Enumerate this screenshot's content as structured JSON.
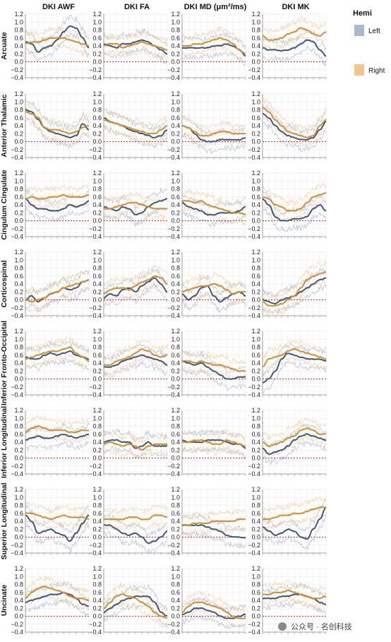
{
  "chart_data": {
    "type": "line",
    "columns": [
      "DKI AWF",
      "DKI FA",
      "DKI MD (μm²/ms)",
      "DKI MK"
    ],
    "rows": [
      "Arcuate",
      "Anterior Thalamic",
      "Cingulum Cingulate",
      "Corticospinal",
      "Inferior Fronto-Occipital",
      "Inferior Longitudinal",
      "Superior Longitudinal",
      "Uncinate"
    ],
    "y_ticks": [
      "1.2",
      "1.0",
      "0.8",
      "0.6",
      "0.4",
      "0.2",
      "0.0",
      "−0.2",
      "−0.4"
    ],
    "ylim": [
      -0.4,
      1.2
    ],
    "xlim": [
      0,
      100
    ],
    "reference_line": 0,
    "legend": {
      "title": "Hemi",
      "placement": "top-right",
      "entries": [
        {
          "label": "Left",
          "color": "#A9B9D2"
        },
        {
          "label": "Right",
          "color": "#F2C58F"
        }
      ]
    },
    "colors": {
      "left_line": "#3D5A80",
      "right_line": "#E08A1E",
      "left_band": "#9FB0C8",
      "right_band": "#F2C58F",
      "grid": "#e6e6e6",
      "reference": "#d62728"
    },
    "series": {
      "Arcuate": {
        "DKI AWF": {
          "Left": [
            0.5,
            0.45,
            0.25,
            0.35,
            0.4,
            0.55,
            0.75,
            0.9,
            0.85,
            0.6,
            0.35
          ],
          "Right": [
            0.45,
            0.5,
            0.5,
            0.55,
            0.6,
            0.6,
            0.6,
            0.55,
            0.5,
            0.45,
            0.4
          ]
        },
        "DKI FA": {
          "Left": [
            0.45,
            0.4,
            0.35,
            0.45,
            0.45,
            0.5,
            0.55,
            0.5,
            0.4,
            0.3,
            0.2
          ],
          "Right": [
            0.4,
            0.45,
            0.45,
            0.35,
            0.4,
            0.45,
            0.5,
            0.45,
            0.4,
            0.35,
            0.3
          ]
        },
        "DKI MD (μm²/ms)": {
          "Left": [
            0.35,
            0.35,
            0.35,
            0.35,
            0.35,
            0.4,
            0.4,
            0.45,
            0.4,
            0.3,
            0.15
          ],
          "Right": [
            0.4,
            0.4,
            0.45,
            0.45,
            0.5,
            0.55,
            0.6,
            0.55,
            0.45,
            0.3,
            0.2
          ]
        },
        "DKI MK": {
          "Left": [
            0.35,
            0.3,
            0.3,
            0.28,
            0.3,
            0.35,
            0.45,
            0.55,
            0.5,
            0.3,
            0.15
          ],
          "Right": [
            0.65,
            0.55,
            0.55,
            0.6,
            0.7,
            0.75,
            0.85,
            0.8,
            0.7,
            0.65,
            0.75
          ]
        }
      },
      "Anterior Thalamic": {
        "DKI AWF": {
          "Left": [
            0.8,
            0.75,
            0.55,
            0.35,
            0.25,
            0.2,
            0.15,
            0.1,
            0.15,
            0.45,
            0.3
          ],
          "Right": [
            0.75,
            0.7,
            0.6,
            0.35,
            0.3,
            0.3,
            0.25,
            0.2,
            0.25,
            0.35,
            0.4
          ]
        },
        "DKI FA": {
          "Left": [
            0.6,
            0.5,
            0.45,
            0.4,
            0.3,
            0.25,
            0.2,
            0.15,
            0.1,
            0.15,
            0.3
          ],
          "Right": [
            0.55,
            0.5,
            0.45,
            0.4,
            0.35,
            0.3,
            0.25,
            0.2,
            0.2,
            0.3,
            0.4
          ]
        },
        "DKI MD (μm²/ms)": {
          "Left": [
            0.4,
            0.35,
            0.2,
            0.05,
            0.0,
            0.0,
            0.05,
            0.05,
            0.05,
            0.05,
            0.1
          ],
          "Right": [
            0.4,
            0.35,
            0.25,
            0.15,
            0.15,
            0.2,
            0.25,
            0.25,
            0.2,
            0.2,
            0.2
          ]
        },
        "DKI MK": {
          "Left": [
            0.7,
            0.6,
            0.4,
            0.25,
            0.15,
            0.1,
            0.05,
            0.05,
            0.1,
            0.3,
            0.5
          ],
          "Right": [
            0.85,
            0.75,
            0.55,
            0.4,
            0.25,
            0.2,
            0.15,
            0.1,
            0.15,
            0.4,
            0.55
          ]
        }
      },
      "Cingulum Cingulate": {
        "DKI AWF": {
          "Left": [
            0.55,
            0.4,
            0.3,
            0.3,
            0.25,
            0.25,
            0.3,
            0.4,
            0.35,
            0.4,
            0.5
          ],
          "Right": [
            0.55,
            0.6,
            0.55,
            0.55,
            0.6,
            0.6,
            0.65,
            0.6,
            0.6,
            0.6,
            0.65
          ]
        },
        "DKI FA": {
          "Left": [
            0.35,
            0.3,
            0.25,
            0.35,
            0.3,
            0.15,
            0.2,
            0.35,
            0.45,
            0.5,
            0.55
          ],
          "Right": [
            0.3,
            0.3,
            0.35,
            0.4,
            0.45,
            0.45,
            0.4,
            0.35,
            0.3,
            0.3,
            0.3
          ]
        },
        "DKI MD (μm²/ms)": {
          "Left": [
            0.45,
            0.35,
            0.3,
            0.25,
            0.15,
            0.15,
            0.2,
            0.2,
            0.2,
            0.25,
            0.35
          ],
          "Right": [
            0.5,
            0.5,
            0.45,
            0.5,
            0.4,
            0.35,
            0.3,
            0.25,
            0.2,
            0.2,
            0.15
          ]
        },
        "DKI MK": {
          "Left": [
            0.55,
            0.4,
            0.1,
            0.0,
            0.0,
            0.05,
            0.05,
            0.1,
            0.3,
            0.4,
            0.25
          ],
          "Right": [
            0.6,
            0.55,
            0.4,
            0.35,
            0.25,
            0.25,
            0.3,
            0.45,
            0.6,
            0.65,
            0.7
          ]
        }
      },
      "Corticospinal": {
        "DKI AWF": {
          "Left": [
            0.0,
            0.1,
            -0.05,
            0.05,
            0.15,
            0.2,
            0.3,
            0.25,
            0.3,
            0.45,
            0.5
          ],
          "Right": [
            0.0,
            -0.05,
            0.0,
            0.05,
            0.15,
            0.2,
            0.3,
            0.35,
            0.4,
            0.45,
            0.5
          ]
        },
        "DKI FA": {
          "Left": [
            0.05,
            0.15,
            0.1,
            0.25,
            0.3,
            0.2,
            0.35,
            0.45,
            0.55,
            0.4,
            0.2
          ],
          "Right": [
            0.15,
            0.25,
            0.3,
            0.3,
            0.25,
            0.35,
            0.45,
            0.5,
            0.6,
            0.55,
            0.4
          ]
        },
        "DKI MD (μm²/ms)": {
          "Left": [
            0.15,
            0.0,
            0.1,
            0.3,
            0.35,
            0.1,
            -0.05,
            0.05,
            0.15,
            0.2,
            0.1
          ],
          "Right": [
            0.2,
            0.25,
            0.3,
            0.35,
            0.35,
            0.4,
            0.35,
            0.25,
            0.15,
            0.2,
            0.2
          ]
        },
        "DKI MK": {
          "Left": [
            0.0,
            -0.05,
            -0.1,
            0.0,
            0.05,
            0.1,
            0.2,
            0.3,
            0.4,
            0.5,
            0.55
          ],
          "Right": [
            -0.05,
            -0.15,
            -0.15,
            -0.1,
            0.0,
            0.1,
            0.3,
            0.5,
            0.6,
            0.65,
            0.7
          ]
        }
      },
      "Inferior Fronto-Occipital": {
        "DKI AWF": {
          "Left": [
            0.55,
            0.5,
            0.5,
            0.6,
            0.65,
            0.6,
            0.65,
            0.7,
            0.6,
            0.55,
            0.5
          ],
          "Right": [
            0.5,
            0.55,
            0.6,
            0.65,
            0.7,
            0.7,
            0.75,
            0.8,
            0.65,
            0.55,
            0.45
          ]
        },
        "DKI FA": {
          "Left": [
            0.3,
            0.3,
            0.35,
            0.45,
            0.5,
            0.55,
            0.6,
            0.55,
            0.5,
            0.45,
            0.35
          ],
          "Right": [
            0.35,
            0.35,
            0.45,
            0.5,
            0.55,
            0.65,
            0.75,
            0.7,
            0.6,
            0.55,
            0.6
          ]
        },
        "DKI MD (μm²/ms)": {
          "Left": [
            0.45,
            0.4,
            0.35,
            0.4,
            0.3,
            0.2,
            0.1,
            0.0,
            0.0,
            0.05,
            0.05
          ],
          "Right": [
            0.45,
            0.45,
            0.4,
            0.45,
            0.4,
            0.35,
            0.35,
            0.3,
            0.25,
            0.2,
            0.2
          ]
        },
        "DKI MK": {
          "Left": [
            -0.1,
            0.0,
            0.2,
            0.5,
            0.65,
            0.6,
            0.55,
            0.5,
            0.5,
            0.5,
            0.45
          ],
          "Right": [
            0.3,
            0.5,
            0.55,
            0.6,
            0.7,
            0.75,
            0.7,
            0.65,
            0.6,
            0.55,
            0.5
          ]
        }
      },
      "Inferior Longitudinal": {
        "DKI AWF": {
          "Left": [
            0.45,
            0.5,
            0.55,
            0.5,
            0.5,
            0.55,
            0.6,
            0.55,
            0.5,
            0.55,
            0.6
          ],
          "Right": [
            0.65,
            0.75,
            0.8,
            0.75,
            0.7,
            0.7,
            0.7,
            0.65,
            0.65,
            0.7,
            0.7
          ]
        },
        "DKI FA": {
          "Left": [
            0.4,
            0.45,
            0.45,
            0.4,
            0.4,
            0.25,
            0.3,
            0.4,
            0.3,
            0.3,
            0.3
          ],
          "Right": [
            0.35,
            0.4,
            0.35,
            0.3,
            0.35,
            0.3,
            0.2,
            0.3,
            0.35,
            0.35,
            0.35
          ]
        },
        "DKI MD (μm²/ms)": {
          "Left": [
            0.45,
            0.4,
            0.4,
            0.4,
            0.45,
            0.45,
            0.45,
            0.4,
            0.35,
            0.35,
            0.25
          ],
          "Right": [
            0.4,
            0.4,
            0.45,
            0.45,
            0.4,
            0.35,
            0.35,
            0.45,
            0.4,
            0.35,
            0.3
          ]
        },
        "DKI MK": {
          "Left": [
            0.25,
            0.1,
            0.15,
            0.2,
            0.3,
            0.45,
            0.55,
            0.6,
            0.55,
            0.5,
            0.45
          ],
          "Right": [
            0.4,
            0.3,
            0.35,
            0.4,
            0.5,
            0.55,
            0.7,
            0.75,
            0.7,
            0.6,
            0.6
          ]
        }
      },
      "Superior Longitudinal": {
        "DKI AWF": {
          "Left": [
            0.55,
            0.4,
            0.1,
            0.15,
            0.2,
            0.1,
            0.05,
            -0.1,
            0.1,
            0.35,
            0.55
          ],
          "Right": [
            0.6,
            0.6,
            0.55,
            0.5,
            0.45,
            0.5,
            0.55,
            0.5,
            0.5,
            0.5,
            0.45
          ]
        },
        "DKI FA": {
          "Left": [
            0.3,
            0.3,
            0.2,
            0.1,
            0.05,
            0.1,
            0.0,
            -0.15,
            -0.1,
            0.0,
            0.15
          ],
          "Right": [
            0.45,
            0.45,
            0.45,
            0.45,
            0.5,
            0.5,
            0.45,
            0.45,
            0.55,
            0.55,
            0.5
          ]
        },
        "DKI MD (μm²/ms)": {
          "Left": [
            0.3,
            0.3,
            0.3,
            0.3,
            0.25,
            0.2,
            0.15,
            0.05,
            0.0,
            0.0,
            -0.02
          ],
          "Right": [
            0.3,
            0.3,
            0.35,
            0.35,
            0.35,
            0.4,
            0.4,
            0.4,
            0.4,
            0.45,
            0.45
          ]
        },
        "DKI MK": {
          "Left": [
            0.25,
            0.15,
            0.05,
            0.1,
            0.2,
            0.15,
            0.0,
            -0.05,
            0.2,
            0.45,
            0.75
          ],
          "Right": [
            0.45,
            0.45,
            0.5,
            0.55,
            0.55,
            0.6,
            0.6,
            0.65,
            0.7,
            0.75,
            0.75
          ]
        }
      },
      "Uncinate": {
        "DKI AWF": {
          "Left": [
            0.35,
            0.4,
            0.45,
            0.5,
            0.55,
            0.55,
            0.6,
            0.55,
            0.45,
            0.3,
            0.25
          ],
          "Right": [
            0.45,
            0.6,
            0.7,
            0.75,
            0.7,
            0.65,
            0.6,
            0.5,
            0.45,
            0.45,
            0.4
          ]
        },
        "DKI FA": {
          "Left": [
            0.1,
            0.2,
            0.3,
            0.4,
            0.45,
            0.5,
            0.5,
            0.5,
            0.35,
            0.1,
            0.0
          ],
          "Right": [
            0.2,
            0.35,
            0.5,
            0.55,
            0.5,
            0.45,
            0.35,
            0.25,
            0.1,
            0.0,
            -0.05
          ]
        },
        "DKI MD (μm²/ms)": {
          "Left": [
            0.05,
            0.1,
            0.2,
            0.2,
            0.15,
            0.1,
            0.0,
            -0.05,
            -0.05,
            0.0,
            0.05
          ],
          "Right": [
            0.1,
            0.25,
            0.35,
            0.35,
            0.3,
            0.25,
            0.2,
            0.1,
            0.0,
            -0.05,
            -0.05
          ]
        },
        "DKI MK": {
          "Left": [
            0.45,
            0.45,
            0.45,
            0.5,
            0.5,
            0.55,
            0.55,
            0.5,
            0.45,
            0.35,
            0.3
          ],
          "Right": [
            0.55,
            0.55,
            0.6,
            0.6,
            0.65,
            0.6,
            0.55,
            0.5,
            0.45,
            0.45,
            0.5
          ]
        }
      }
    }
  },
  "watermark": "公众号 · 名创科技"
}
